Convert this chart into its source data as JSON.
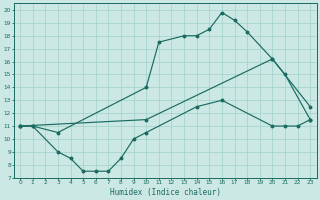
{
  "bg_color": "#cce8e4",
  "line_color": "#1a6b62",
  "grid_color": "#a8d4ce",
  "xlabel": "Humidex (Indice chaleur)",
  "xlim": [
    -0.5,
    23.5
  ],
  "ylim": [
    7,
    20.5
  ],
  "xticks": [
    0,
    1,
    2,
    3,
    4,
    5,
    6,
    7,
    8,
    9,
    10,
    11,
    12,
    13,
    14,
    15,
    16,
    17,
    18,
    19,
    20,
    21,
    22,
    23
  ],
  "yticks": [
    7,
    8,
    9,
    10,
    11,
    12,
    13,
    14,
    15,
    16,
    17,
    18,
    19,
    20
  ],
  "line1_x": [
    0,
    1,
    3,
    10,
    11,
    13,
    14,
    15,
    16,
    17,
    18,
    20,
    21,
    23
  ],
  "line1_y": [
    11,
    11,
    10.5,
    14,
    17.5,
    18,
    18,
    18.5,
    19.8,
    19.2,
    18.3,
    16.2,
    15,
    11.5
  ],
  "line2_x": [
    0,
    1,
    3,
    4,
    5,
    6,
    7,
    8,
    9,
    10,
    14,
    16,
    20,
    21,
    22,
    23
  ],
  "line2_y": [
    11,
    11,
    9,
    8.5,
    7.5,
    7.5,
    7.5,
    8.5,
    10,
    10.5,
    12.5,
    13,
    11,
    11,
    11,
    11.5
  ],
  "line3_x": [
    0,
    10,
    20,
    23
  ],
  "line3_y": [
    11,
    11.5,
    16.2,
    12.5
  ]
}
